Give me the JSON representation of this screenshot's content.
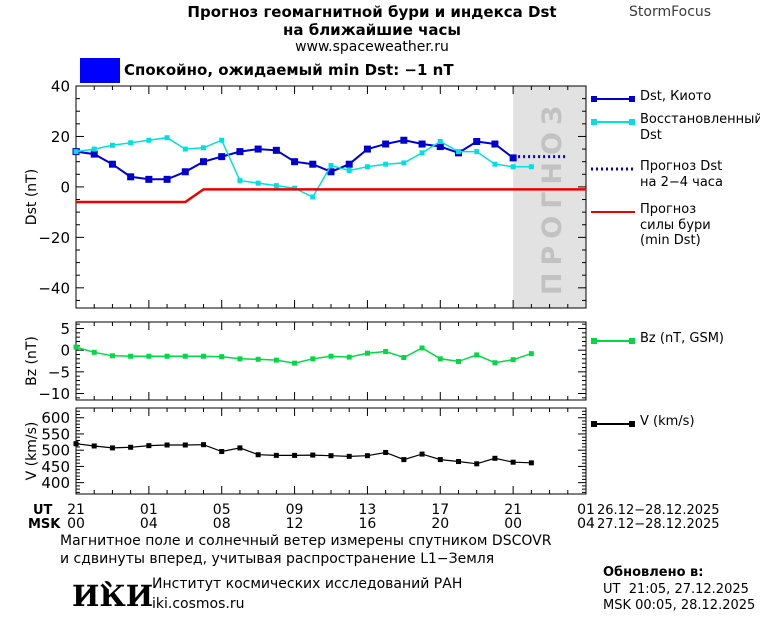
{
  "header": {
    "title_line1": "Прогноз геомагнитной бури и индекса Dst",
    "title_line2": "на ближайшие часы",
    "subtitle": "www.spaceweather.ru",
    "brand": "StormFocus"
  },
  "status_banner": {
    "text": "Спокойно, ожидаемый min Dst: −1 nT",
    "box_color": "#0000ff"
  },
  "xaxis": {
    "ut_label": "UT",
    "msk_label": "MSK",
    "ut_ticks": [
      "21",
      "01",
      "05",
      "09",
      "13",
      "17",
      "21",
      "01"
    ],
    "msk_ticks": [
      "00",
      "04",
      "08",
      "12",
      "16",
      "20",
      "00",
      "04"
    ],
    "ut_range": "26.12−28.12.2025",
    "msk_range": "27.12−28.12.2025",
    "hours_total": 28,
    "tick_step_hours": 4
  },
  "chart_data": [
    {
      "type": "line",
      "panel": "dst",
      "ylabel": "Dst (nT)",
      "ylim": [
        -48,
        40
      ],
      "yticks": [
        40,
        20,
        0,
        -20,
        -40
      ],
      "ytick_minor_step": 5,
      "x_start": "21 UT 26.12.2025",
      "x_step_hours": 1,
      "forecast_region": {
        "start_hour": 24,
        "end_hour": 28,
        "label": "ПРОГНОЗ",
        "bg": "#e2e2e2",
        "label_color": "#c2c2c2"
      },
      "series": [
        {
          "name": "Dst, Киото",
          "slug": "dst-kyoto",
          "color": "#0000d0",
          "marker": "square",
          "marker_size": 7,
          "width": 2,
          "start_hour": 0,
          "step_hours": 1,
          "values": [
            14,
            13,
            9,
            4,
            3,
            3,
            6,
            10,
            12,
            14,
            15,
            14.5,
            10,
            9,
            6,
            9,
            15,
            17,
            18.5,
            17,
            16,
            13.5,
            18,
            17,
            11.5
          ]
        },
        {
          "name": "Восстановленный Dst",
          "slug": "dst-reconstructed",
          "color": "#00e0e0",
          "marker": "square",
          "marker_size": 5,
          "width": 1.5,
          "start_hour": 0,
          "step_hours": 1,
          "values": [
            14,
            15,
            16.5,
            17.5,
            18.5,
            19.5,
            15,
            15.5,
            18.5,
            2.5,
            1.5,
            0.5,
            -0.5,
            -4,
            8.5,
            6.5,
            8,
            9,
            9.5,
            13.5,
            18,
            14,
            14,
            9,
            8,
            8
          ]
        },
        {
          "name": "Прогноз Dst на 2−4 часа",
          "slug": "dst-forecast-dotted",
          "color": "#0000d0",
          "style": "dotted",
          "width": 3,
          "marker": "none",
          "x_hours": [
            24,
            27
          ],
          "values": [
            12,
            12
          ]
        },
        {
          "name": "Прогноз силы бури (min Dst)",
          "slug": "storm-min-forecast",
          "color": "#ee0000",
          "style": "solid",
          "width": 2.5,
          "marker": "none",
          "x_hours": [
            0,
            6,
            7,
            28
          ],
          "values": [
            -6,
            -6,
            -1,
            -1
          ]
        }
      ]
    },
    {
      "type": "line",
      "panel": "bz",
      "ylabel": "Bz (nT)",
      "ylim": [
        -11.5,
        6.5
      ],
      "yticks": [
        5,
        0,
        -5,
        -10
      ],
      "ytick_minor_step": 1,
      "series": [
        {
          "name": "Bz (nT, GSM)",
          "slug": "bz-gsm",
          "color": "#00d943",
          "marker": "square",
          "marker_size": 5,
          "width": 1.5,
          "start_hour": 0,
          "step_hours": 1,
          "values": [
            0.7,
            -0.5,
            -1.3,
            -1.4,
            -1.4,
            -1.4,
            -1.4,
            -1.4,
            -1.5,
            -2,
            -2.1,
            -2.3,
            -3,
            -2,
            -1.4,
            -1.6,
            -0.7,
            -0.3,
            -1.7,
            0.5,
            -2,
            -2.6,
            -1.1,
            -2.9,
            -2.2,
            -0.8
          ]
        }
      ]
    },
    {
      "type": "line",
      "panel": "v",
      "ylabel": "V (km/s)",
      "ylim": [
        365,
        630
      ],
      "yticks": [
        600,
        550,
        500,
        450,
        400
      ],
      "ytick_minor_step": 10,
      "series": [
        {
          "name": "V (km/s)",
          "slug": "solar-wind-speed",
          "color": "#000000",
          "marker": "square",
          "marker_size": 5,
          "width": 1.2,
          "start_hour": 0,
          "step_hours": 1,
          "values": [
            520,
            513,
            507,
            509,
            514,
            516,
            516,
            517,
            496,
            507,
            486,
            484,
            484,
            485,
            483,
            481,
            483,
            493,
            471,
            488,
            471,
            465,
            458,
            475,
            463,
            461
          ]
        }
      ]
    }
  ],
  "legend_dst": [
    {
      "slug": "dst-kyoto",
      "lines": [
        "Dst, Киото"
      ],
      "color": "#0000d0",
      "style": "solid",
      "marker": true
    },
    {
      "slug": "dst-reconstructed",
      "lines": [
        "Восстановленный",
        "Dst"
      ],
      "color": "#00e0e0",
      "style": "solid",
      "marker": true
    },
    {
      "slug": "dst-forecast",
      "lines": [
        "Прогноз Dst",
        "на 2−4 часа"
      ],
      "color": "#0000d0",
      "style": "dotted",
      "marker": false
    },
    {
      "slug": "storm-min",
      "lines": [
        "Прогноз",
        "силы бури",
        "(min Dst)"
      ],
      "color": "#ee0000",
      "style": "solid",
      "marker": false
    }
  ],
  "legend_bz": {
    "label": "Bz (nT, GSM)",
    "color": "#00d943"
  },
  "legend_v": {
    "label": "V (km/s)",
    "color": "#000000"
  },
  "footer": {
    "note_line1": "Магнитное поле и солнечный ветер измерены спутником DSCOVR",
    "note_line2": "и сдвинуты вперед, учитывая распространение L1−Земля",
    "org_logo": "ИКИ",
    "org_name": "Институт космических исследований РАН",
    "org_site": "iki.cosmos.ru",
    "updated_label": "Обновлено в:",
    "updated_ut": "UT  21:05, 27.12.2025",
    "updated_msk": "MSK 00:05, 28.12.2025"
  }
}
